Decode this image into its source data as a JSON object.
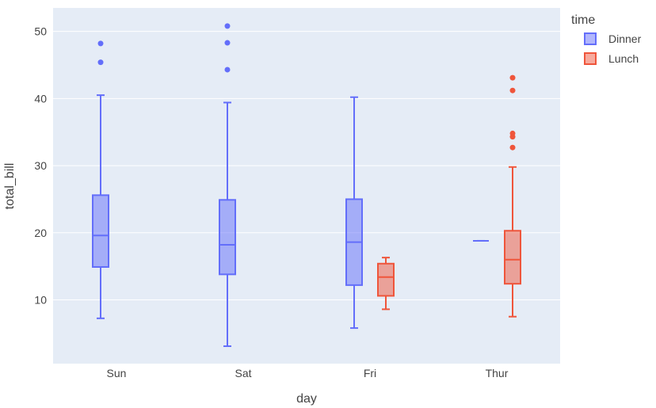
{
  "chart_data": {
    "type": "box",
    "xlabel": "day",
    "ylabel": "total_bill",
    "categories": [
      "Sun",
      "Sat",
      "Fri",
      "Thur"
    ],
    "ylim": [
      0.5,
      53.5
    ],
    "yticks": [
      10,
      20,
      30,
      40,
      50
    ],
    "legend": {
      "title": "time",
      "position": "top-right"
    },
    "series": [
      {
        "name": "Dinner",
        "color": "#636efa",
        "boxes": [
          {
            "category": "Sun",
            "min": 7.25,
            "q1": 14.9,
            "median": 19.6,
            "q3": 25.6,
            "max": 40.5,
            "outliers": [
              45.4,
              48.2
            ]
          },
          {
            "category": "Sat",
            "min": 3.1,
            "q1": 13.8,
            "median": 18.2,
            "q3": 24.9,
            "max": 39.4,
            "outliers": [
              44.3,
              48.3,
              50.8
            ]
          },
          {
            "category": "Fri",
            "min": 5.8,
            "q1": 12.2,
            "median": 18.6,
            "q3": 25.0,
            "max": 40.2,
            "outliers": []
          },
          {
            "category": "Thur",
            "min": 18.8,
            "q1": 18.8,
            "median": 18.8,
            "q3": 18.8,
            "max": 18.8,
            "outliers": []
          }
        ]
      },
      {
        "name": "Lunch",
        "color": "#ef553b",
        "boxes": [
          {
            "category": "Fri",
            "min": 8.6,
            "q1": 10.6,
            "median": 13.4,
            "q3": 15.4,
            "max": 16.3,
            "outliers": []
          },
          {
            "category": "Thur",
            "min": 7.5,
            "q1": 12.4,
            "median": 16.0,
            "q3": 20.3,
            "max": 29.8,
            "outliers": [
              32.7,
              34.3,
              34.8,
              41.2,
              43.1
            ]
          }
        ]
      }
    ]
  }
}
